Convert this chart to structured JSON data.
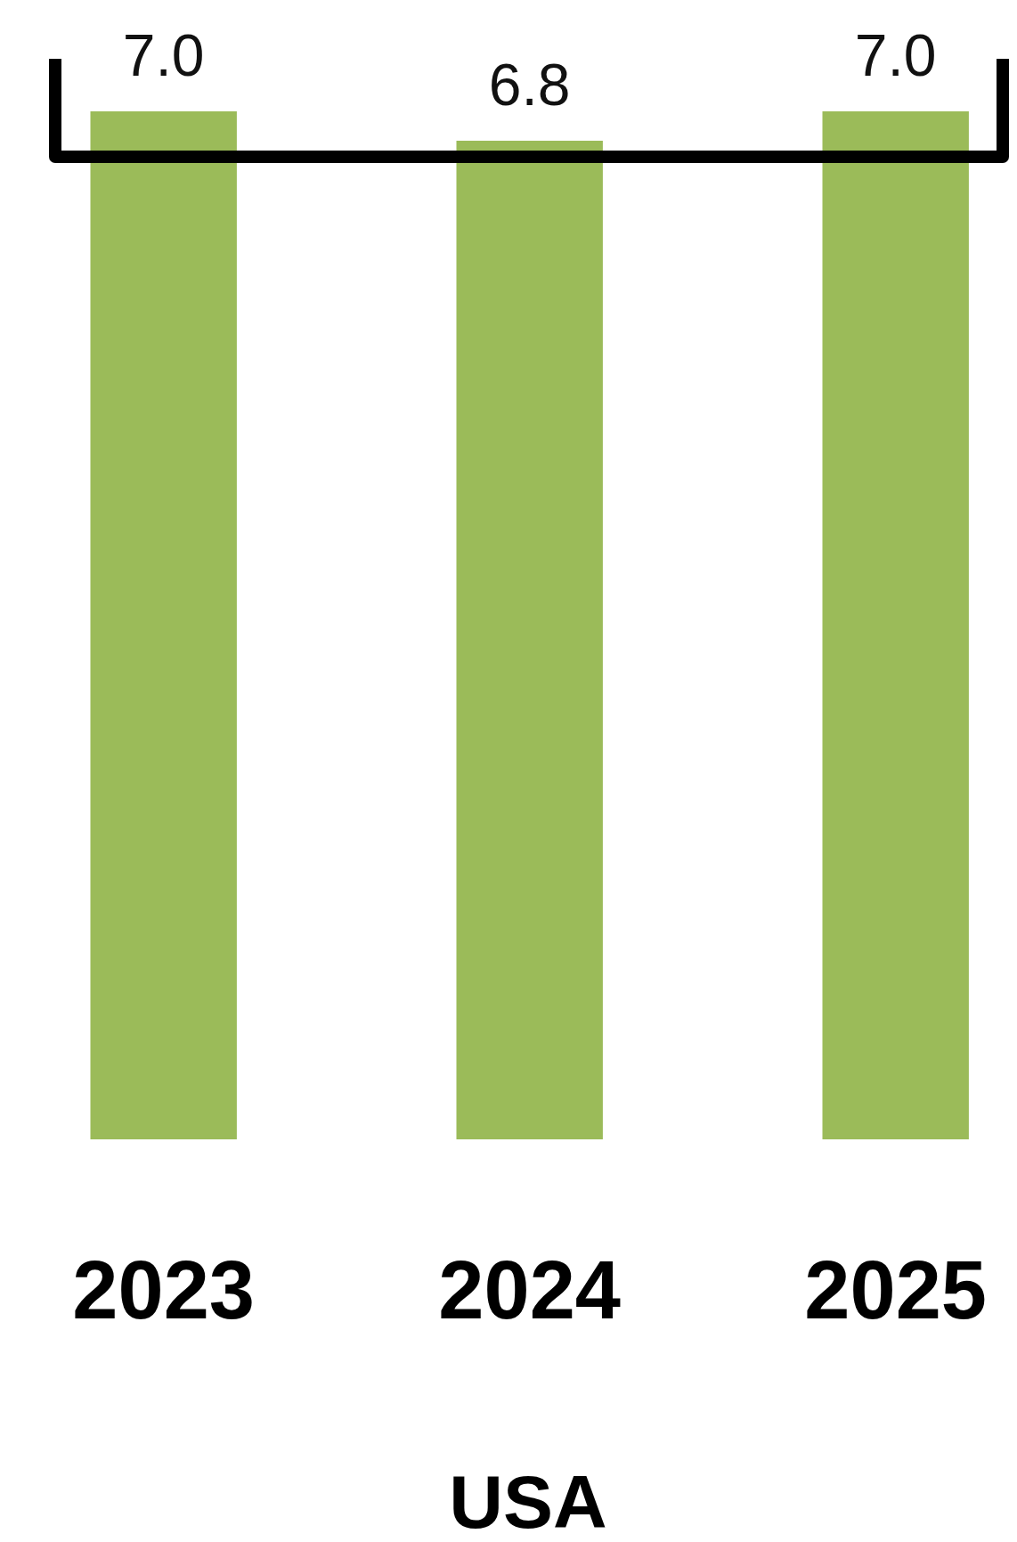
{
  "chart_data": {
    "type": "bar",
    "xlabel": "USA",
    "categories": [
      "2023",
      "2024",
      "2025"
    ],
    "values": [
      7.0,
      6.8,
      7.0
    ],
    "value_labels": [
      "7.0",
      "6.8",
      "7.0"
    ],
    "color": "#9bbb59"
  }
}
